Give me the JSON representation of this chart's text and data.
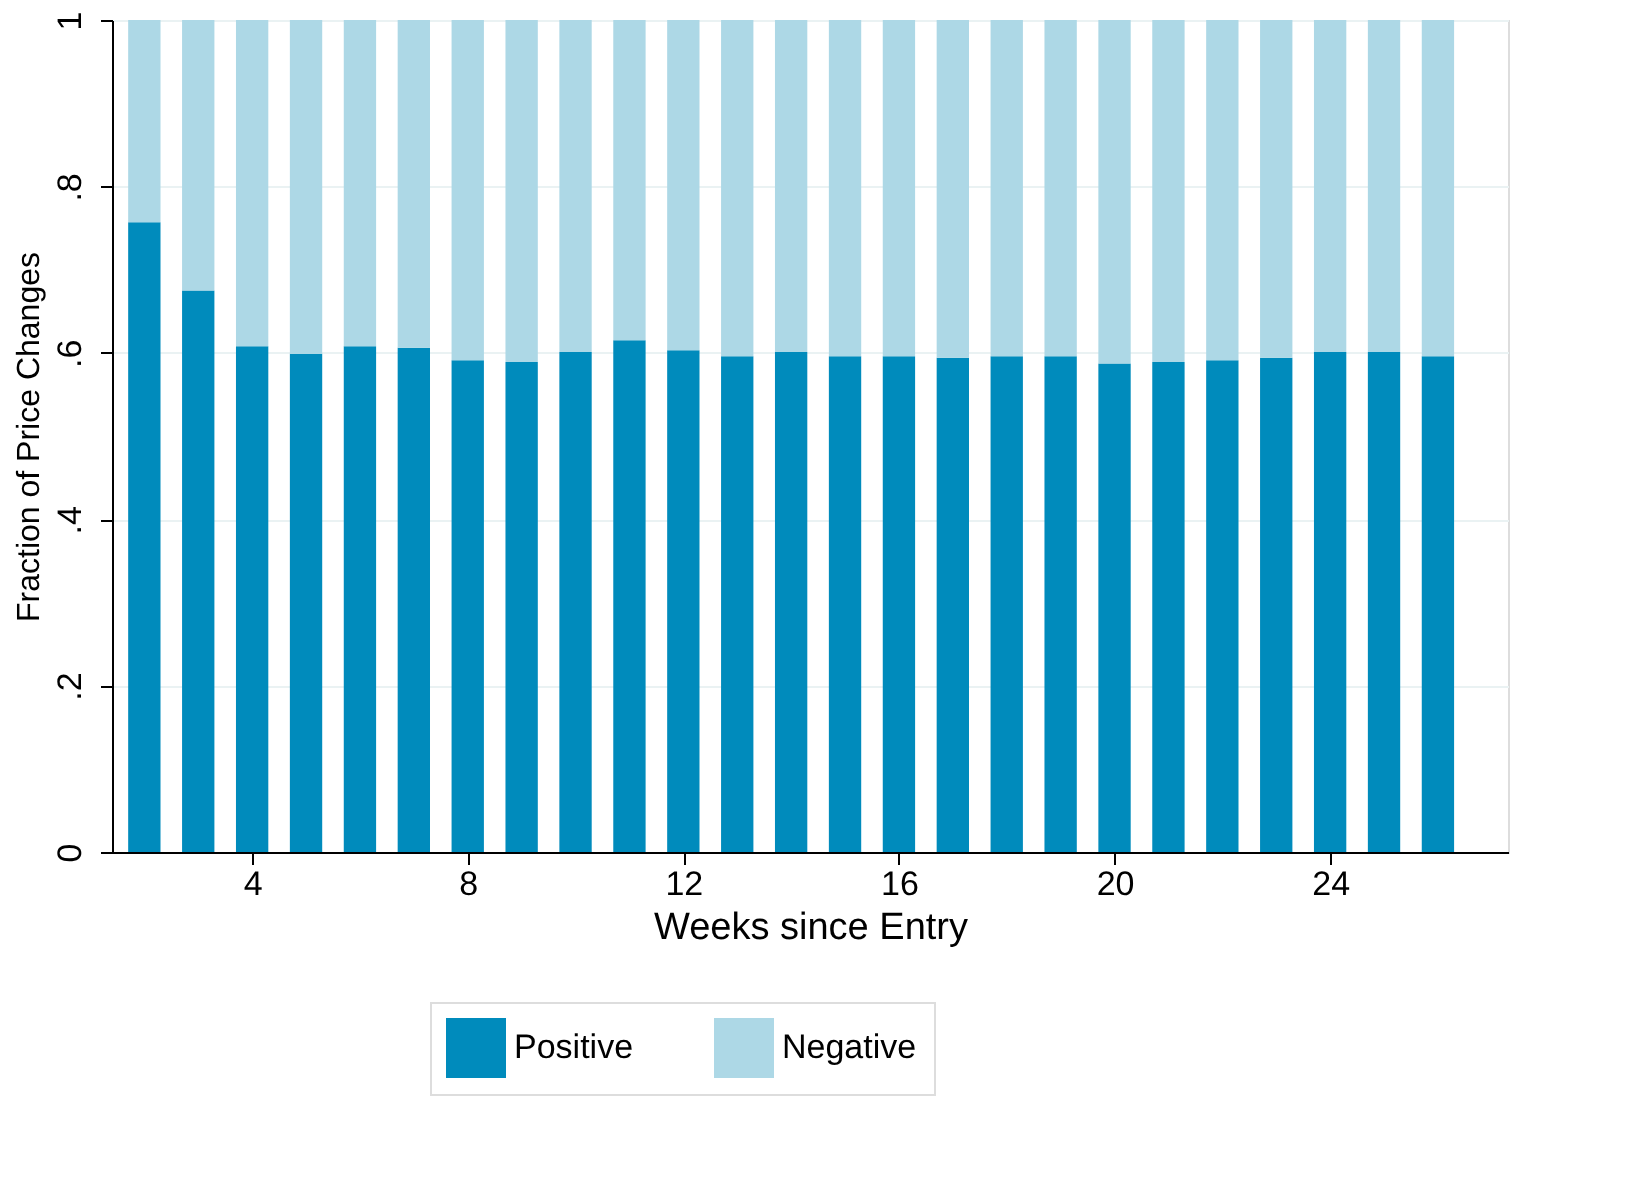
{
  "chart_data": {
    "type": "bar",
    "stacked": true,
    "xlabel": "Weeks since Entry",
    "ylabel": "Fraction of Price Changes",
    "x": [
      2,
      3,
      4,
      5,
      6,
      7,
      8,
      9,
      10,
      11,
      12,
      13,
      14,
      15,
      16,
      17,
      18,
      19,
      20,
      21,
      22,
      23,
      24,
      25,
      26
    ],
    "series": [
      {
        "name": "Positive",
        "color": "#008bbc",
        "values": [
          0.757,
          0.675,
          0.608,
          0.599,
          0.608,
          0.606,
          0.591,
          0.589,
          0.601,
          0.615,
          0.603,
          0.596,
          0.601,
          0.596,
          0.596,
          0.594,
          0.596,
          0.596,
          0.587,
          0.589,
          0.591,
          0.594,
          0.601,
          0.601,
          0.596
        ]
      },
      {
        "name": "Negative",
        "color": "#add8e6",
        "values": [
          0.243,
          0.325,
          0.392,
          0.401,
          0.392,
          0.394,
          0.409,
          0.411,
          0.399,
          0.385,
          0.397,
          0.404,
          0.399,
          0.404,
          0.404,
          0.406,
          0.404,
          0.404,
          0.413,
          0.411,
          0.409,
          0.406,
          0.399,
          0.399,
          0.404
        ]
      }
    ],
    "xlim": [
      1.4,
      27.3
    ],
    "xticks": [
      4,
      8,
      12,
      16,
      20,
      24
    ],
    "ylim": [
      0,
      1
    ],
    "yticks": [
      0,
      {
        "value": 0.2,
        "label": ".2"
      },
      {
        "value": 0.4,
        "label": ".4"
      },
      {
        "value": 0.6,
        "label": ".6"
      },
      {
        "value": 0.8,
        "label": ".8"
      },
      1
    ],
    "grid": "y",
    "legend": "bottom"
  }
}
